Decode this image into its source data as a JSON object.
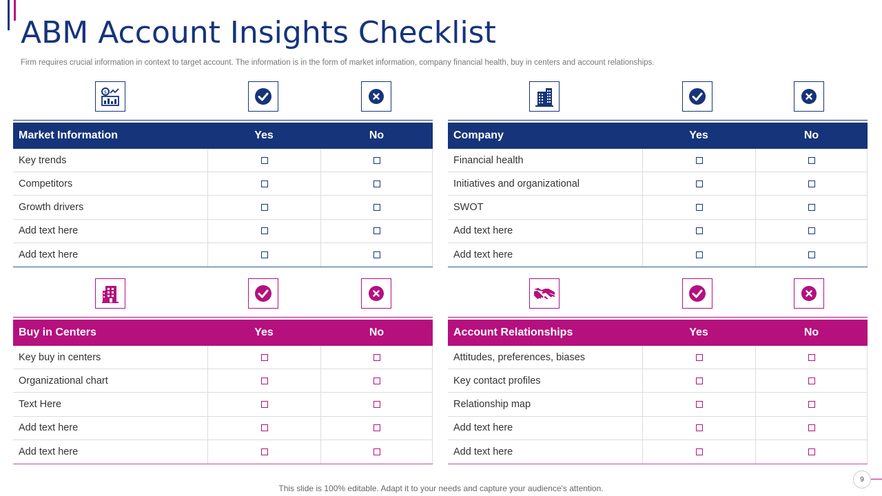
{
  "title": "ABM Account Insights Checklist",
  "subtitle": "Firm requires crucial information in context to target account. The information is in the form of market information, company financial health, buy in centers and account relationships.",
  "colors": {
    "navy": "#16347a",
    "pink": "#b5107e"
  },
  "panels": {
    "market": {
      "icon": "market-analysis-icon",
      "header": {
        "label": "Market Information",
        "yes": "Yes",
        "no": "No"
      },
      "rows": [
        "Key trends",
        "Competitors",
        "Growth drivers",
        "Add text here",
        "Add text here"
      ]
    },
    "company": {
      "icon": "office-building-icon",
      "header": {
        "label": "Company",
        "yes": "Yes",
        "no": "No"
      },
      "rows": [
        "Financial health",
        "Initiatives and organizational",
        "SWOT",
        "Add text here",
        "Add text here"
      ]
    },
    "buyin": {
      "icon": "building-icon",
      "header": {
        "label": "Buy in Centers",
        "yes": "Yes",
        "no": "No"
      },
      "rows": [
        "Key buy in centers",
        "Organizational chart",
        "Text Here",
        "Add text here",
        "Add text here"
      ]
    },
    "relationships": {
      "icon": "handshake-icon",
      "header": {
        "label": "Account Relationships",
        "yes": "Yes",
        "no": "No"
      },
      "rows": [
        "Attitudes, preferences, biases",
        "Key contact profiles",
        "Relationship map",
        "Add text here",
        "Add text here"
      ]
    }
  },
  "footer": {
    "note": "This slide is 100% editable. Adapt it to your needs and capture your audience's attention.",
    "page": "9"
  }
}
